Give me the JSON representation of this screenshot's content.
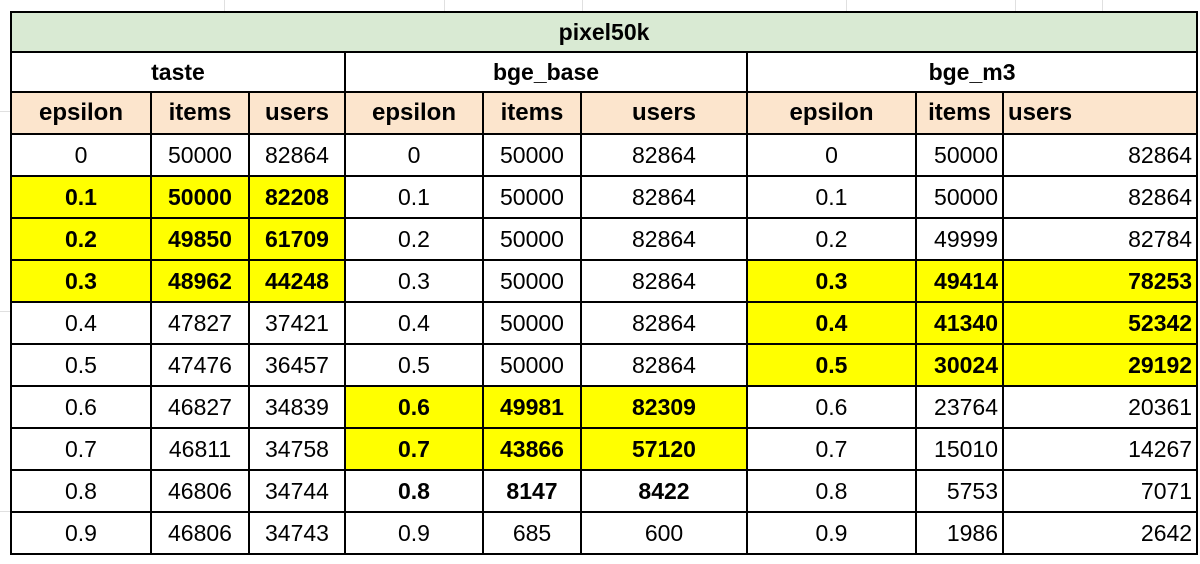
{
  "sheet": {
    "title": "pixel50k",
    "groups": [
      "taste",
      "bge_base",
      "bge_m3"
    ],
    "column_headers": [
      "epsilon",
      "items",
      "users",
      "epsilon",
      "items",
      "users",
      "epsilon",
      "items",
      "users"
    ],
    "rows": [
      [
        "0",
        "50000",
        "82864",
        "0",
        "50000",
        "82864",
        "0",
        "50000",
        "82864"
      ],
      [
        "0.1",
        "50000",
        "82208",
        "0.1",
        "50000",
        "82864",
        "0.1",
        "50000",
        "82864"
      ],
      [
        "0.2",
        "49850",
        "61709",
        "0.2",
        "50000",
        "82864",
        "0.2",
        "49999",
        "82784"
      ],
      [
        "0.3",
        "48962",
        "44248",
        "0.3",
        "50000",
        "82864",
        "0.3",
        "49414",
        "78253"
      ],
      [
        "0.4",
        "47827",
        "37421",
        "0.4",
        "50000",
        "82864",
        "0.4",
        "41340",
        "52342"
      ],
      [
        "0.5",
        "47476",
        "36457",
        "0.5",
        "50000",
        "82864",
        "0.5",
        "30024",
        "29192"
      ],
      [
        "0.6",
        "46827",
        "34839",
        "0.6",
        "49981",
        "82309",
        "0.6",
        "23764",
        "20361"
      ],
      [
        "0.7",
        "46811",
        "34758",
        "0.7",
        "43866",
        "57120",
        "0.7",
        "15010",
        "14267"
      ],
      [
        "0.8",
        "46806",
        "34744",
        "0.8",
        "8147",
        "8422",
        "0.8",
        "5753",
        "7071"
      ],
      [
        "0.9",
        "46806",
        "34743",
        "0.9",
        "685",
        "600",
        "0.9",
        "1986",
        "2642"
      ]
    ]
  },
  "colors": {
    "title_bg": "#d9ead3",
    "header_bg": "#fce5cd",
    "highlight": "#ffff00",
    "border": "#000000"
  }
}
